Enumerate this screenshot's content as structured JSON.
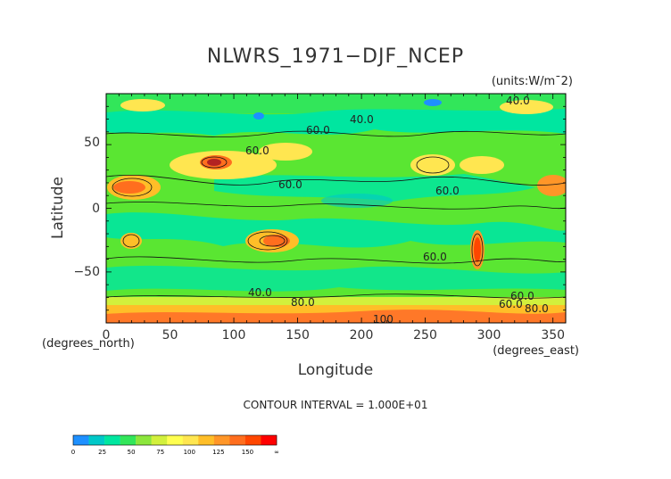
{
  "chart_data": {
    "type": "heatmap",
    "title": "NLWRS_1971−DJF_NCEP",
    "units": "(units:W/m¯2)",
    "xlabel": "Longitude",
    "ylabel": "Latitude",
    "x_units_note": "(degrees_east)",
    "y_units_note": "(degrees_north)",
    "x_ticks": [
      "0",
      "50",
      "100",
      "150",
      "200",
      "250",
      "300",
      "350"
    ],
    "y_ticks": [
      "50",
      "0",
      "−50"
    ],
    "xlim": [
      0,
      360
    ],
    "ylim": [
      -90,
      90
    ],
    "contour_interval_text": "CONTOUR INTERVAL = 1.000E+01",
    "contour_labels": [
      "40.0",
      "60.0",
      "60.0",
      "60.0",
      "60.0",
      "60.0",
      "80.0",
      "40.0",
      "60.0",
      "60.0",
      "80.0",
      "100",
      "40.0"
    ],
    "colorbar": {
      "ticks": [
        "0",
        "25",
        "50",
        "75",
        "100",
        "125",
        "150",
        "∞"
      ],
      "colors": [
        "#1e90ff",
        "#00c8c8",
        "#00e6a0",
        "#32e65a",
        "#8ce63c",
        "#d2f03c",
        "#ffff50",
        "#ffe650",
        "#ffbe28",
        "#ff9628",
        "#ff6e1e",
        "#ff4600",
        "#ff0000"
      ]
    }
  }
}
